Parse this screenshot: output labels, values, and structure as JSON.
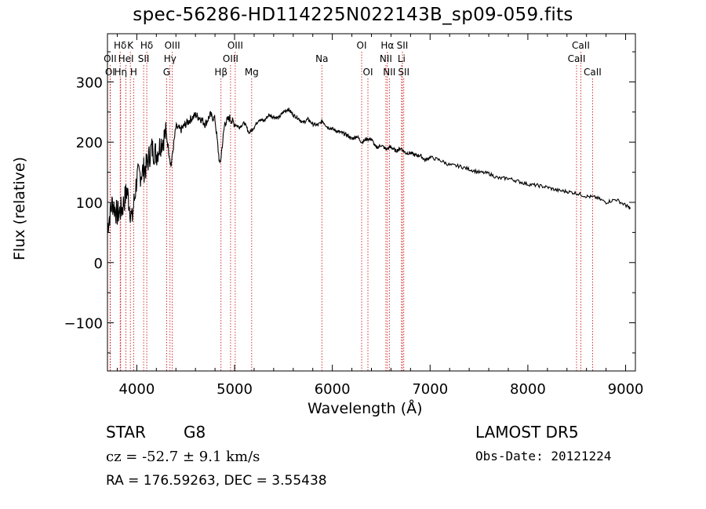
{
  "title": "spec-56286-HD114225N022143B_sp09-059.fits",
  "info": {
    "class": "STAR",
    "subclass": "G8",
    "survey": "LAMOST DR5",
    "cz": "cz = -52.7 ± 9.1 km/s",
    "obs_date": "Obs-Date: 20121224",
    "radec": "RA = 176.59263, DEC =   3.55438"
  },
  "chart_data": {
    "type": "line",
    "title": "spec-56286-HD114225N022143B_sp09-059.fits",
    "xlabel": "Wavelength (Å)",
    "ylabel": "Flux (relative)",
    "xlim": [
      3700,
      9100
    ],
    "ylim": [
      -180,
      380
    ],
    "xticks": [
      4000,
      5000,
      6000,
      7000,
      8000,
      9000
    ],
    "yticks": [
      -100,
      0,
      100,
      200,
      300
    ],
    "xtick_labels": [
      "4000",
      "5000",
      "6000",
      "7000",
      "8000",
      "9000"
    ],
    "ytick_labels": [
      "−100",
      "0",
      "100",
      "200",
      "300"
    ],
    "line_color": "#000000",
    "marker_color": "#cc0000",
    "series": [
      {
        "x": [
          3700,
          3750,
          3800,
          3850,
          3900,
          3950,
          4000,
          4050,
          4100,
          4150,
          4200,
          4250,
          4300,
          4350,
          4400,
          4450,
          4500,
          4550,
          4600,
          4650,
          4700,
          4750,
          4800,
          4850,
          4900,
          4950,
          5000,
          5050,
          5100,
          5150,
          5200,
          5250,
          5300,
          5350,
          5400,
          5450,
          5500,
          5550,
          5600,
          5650,
          5700,
          5750,
          5800,
          5850,
          5900,
          5950,
          6000,
          6050,
          6100,
          6150,
          6200,
          6250,
          6300,
          6350,
          6400,
          6450,
          6500,
          6550,
          6600,
          6650,
          6700,
          6750,
          6800,
          6850,
          6900,
          6950,
          7000,
          7100,
          7200,
          7300,
          7400,
          7500,
          7600,
          7700,
          7800,
          7900,
          8000,
          8100,
          8200,
          8300,
          8400,
          8500,
          8600,
          8700,
          8800,
          8900,
          9000,
          9050
        ],
        "y": [
          60,
          100,
          80,
          90,
          120,
          70,
          140,
          150,
          160,
          190,
          180,
          200,
          215,
          160,
          225,
          220,
          230,
          238,
          245,
          240,
          230,
          245,
          238,
          160,
          232,
          240,
          230,
          225,
          232,
          215,
          225,
          238,
          235,
          245,
          242,
          240,
          250,
          255,
          245,
          240,
          232,
          238,
          230,
          228,
          235,
          225,
          222,
          218,
          215,
          212,
          205,
          210,
          200,
          205,
          205,
          190,
          195,
          188,
          192,
          185,
          190,
          182,
          182,
          178,
          178,
          170,
          175,
          170,
          162,
          160,
          155,
          150,
          148,
          140,
          140,
          135,
          130,
          128,
          125,
          120,
          118,
          115,
          110,
          108,
          100,
          105,
          95,
          90
        ]
      }
    ],
    "markers": [
      {
        "label": "Hδ",
        "x": 4102,
        "row": 0
      },
      {
        "label": "K",
        "x": 3934,
        "row": 0
      },
      {
        "label": "Hδ",
        "x": 3830,
        "row": 0
      },
      {
        "label": "OIII",
        "x": 4363,
        "row": 0
      },
      {
        "label": "OIII",
        "x": 5007,
        "row": 0
      },
      {
        "label": "OI",
        "x": 6300,
        "row": 0
      },
      {
        "label": "Hα",
        "x": 6563,
        "row": 0
      },
      {
        "label": "SII",
        "x": 6717,
        "row": 0
      },
      {
        "label": "CaII",
        "x": 8542,
        "row": 0
      },
      {
        "label": "OII",
        "x": 3727,
        "row": 1
      },
      {
        "label": "HeI",
        "x": 3889,
        "row": 1
      },
      {
        "label": "SII",
        "x": 4070,
        "row": 1
      },
      {
        "label": "Hγ",
        "x": 4340,
        "row": 1
      },
      {
        "label": "OIII",
        "x": 4959,
        "row": 1
      },
      {
        "label": "Na",
        "x": 5893,
        "row": 1
      },
      {
        "label": "NII",
        "x": 6548,
        "row": 1
      },
      {
        "label": "Li",
        "x": 6708,
        "row": 1
      },
      {
        "label": "CaII",
        "x": 8498,
        "row": 1
      },
      {
        "label": "OI",
        "x": 3727,
        "row": 2
      },
      {
        "label": "Hη",
        "x": 3835,
        "row": 2
      },
      {
        "label": "H",
        "x": 3968,
        "row": 2
      },
      {
        "label": "G",
        "x": 4305,
        "row": 2
      },
      {
        "label": "Hβ",
        "x": 4861,
        "row": 2
      },
      {
        "label": "Mg",
        "x": 5175,
        "row": 2
      },
      {
        "label": "OI",
        "x": 6364,
        "row": 2
      },
      {
        "label": "NII",
        "x": 6583,
        "row": 2
      },
      {
        "label": "SII",
        "x": 6731,
        "row": 2
      },
      {
        "label": "CaII",
        "x": 8662,
        "row": 2
      }
    ]
  }
}
